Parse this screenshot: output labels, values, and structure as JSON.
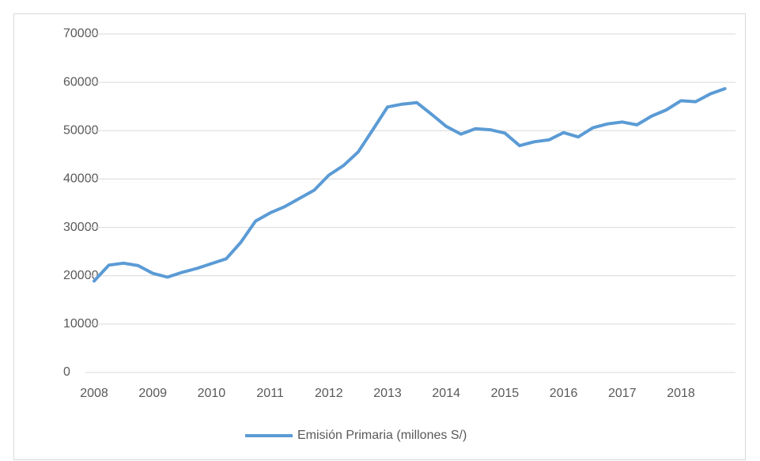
{
  "chart_data": {
    "type": "line",
    "categories": [
      "2008",
      null,
      null,
      null,
      "2009",
      null,
      null,
      null,
      "2010",
      null,
      null,
      null,
      "2011",
      null,
      null,
      null,
      "2012",
      null,
      null,
      null,
      "2013",
      null,
      null,
      null,
      "2014",
      null,
      null,
      null,
      "2015",
      null,
      null,
      null,
      "2016",
      null,
      null,
      null,
      "2017",
      null,
      null,
      null,
      "2018",
      null,
      null,
      null
    ],
    "series": [
      {
        "name": "Emisión Primaria  (millones S/)",
        "color": "#5b9bd5",
        "values": [
          18900,
          22200,
          22600,
          22100,
          20500,
          19700,
          20700,
          21500,
          22500,
          23500,
          26900,
          31300,
          33000,
          34300,
          36000,
          37700,
          40800,
          42800,
          45600,
          50200,
          54900,
          55500,
          55800,
          53400,
          50900,
          49300,
          50400,
          50200,
          49500,
          46900,
          47700,
          48100,
          49600,
          48700,
          50600,
          51400,
          51800,
          51200,
          53000,
          54300,
          56200,
          56000,
          57600,
          58700
        ]
      }
    ],
    "ylim": [
      0,
      70000
    ],
    "yticks": [
      0,
      10000,
      20000,
      30000,
      40000,
      50000,
      60000,
      70000
    ],
    "grid": true,
    "legend": "bottom"
  }
}
